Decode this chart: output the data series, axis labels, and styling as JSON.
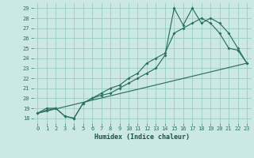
{
  "title": "",
  "xlabel": "Humidex (Indice chaleur)",
  "bg_color": "#cce8e4",
  "grid_color": "#99ccc4",
  "line_color": "#2a7060",
  "xlim": [
    -0.5,
    23.5
  ],
  "ylim": [
    17.5,
    29.5
  ],
  "xticks": [
    0,
    1,
    2,
    3,
    4,
    5,
    6,
    7,
    8,
    9,
    10,
    11,
    12,
    13,
    14,
    15,
    16,
    17,
    18,
    19,
    20,
    21,
    22,
    23
  ],
  "yticks": [
    18,
    19,
    20,
    21,
    22,
    23,
    24,
    25,
    26,
    27,
    28,
    29
  ],
  "line1_x": [
    0,
    1,
    2,
    3,
    4,
    5,
    6,
    7,
    8,
    9,
    10,
    11,
    12,
    13,
    14,
    15,
    16,
    17,
    18,
    19,
    20,
    21,
    22,
    23
  ],
  "line1_y": [
    18.5,
    19,
    19,
    18.2,
    18,
    19.5,
    20,
    20.3,
    20.5,
    21,
    21.5,
    22,
    22.5,
    23,
    24.3,
    29,
    27.3,
    29,
    27.5,
    28,
    27.5,
    26.5,
    25,
    23.5
  ],
  "line2_x": [
    0,
    1,
    2,
    3,
    4,
    5,
    6,
    7,
    8,
    9,
    10,
    11,
    12,
    13,
    14,
    15,
    16,
    17,
    18,
    19,
    20,
    21,
    22,
    23
  ],
  "line2_y": [
    18.5,
    18.8,
    19,
    18.2,
    18,
    19.5,
    20,
    20.5,
    21,
    21.3,
    22,
    22.5,
    23.5,
    24,
    24.5,
    26.5,
    27,
    27.5,
    28,
    27.5,
    26.5,
    25,
    24.8,
    23.5
  ],
  "line3_x": [
    0,
    23
  ],
  "line3_y": [
    18.5,
    23.5
  ],
  "figsize": [
    3.2,
    2.0
  ],
  "dpi": 100
}
